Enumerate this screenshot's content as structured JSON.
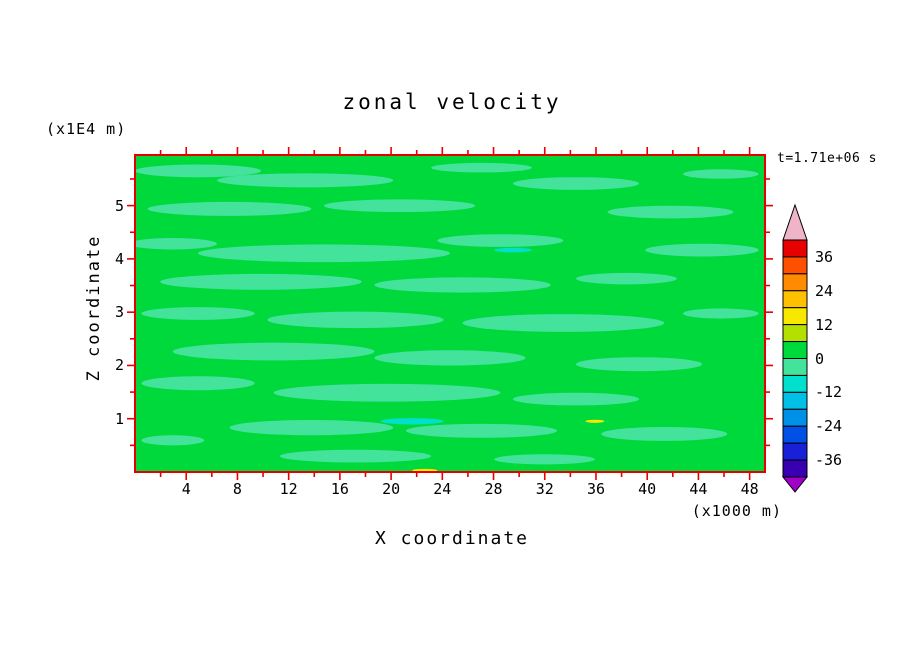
{
  "title": "zonal velocity",
  "annotations": {
    "y_axis_unit": "(x1E4 m)",
    "x_axis_unit": "(x1000 m)",
    "timestamp": "t=1.71e+06 s"
  },
  "x_axis": {
    "label": "X coordinate",
    "tick_labels": [
      "4",
      "8",
      "12",
      "16",
      "20",
      "24",
      "28",
      "32",
      "36",
      "40",
      "44",
      "48"
    ]
  },
  "y_axis": {
    "label": "Z coordinate",
    "tick_labels": [
      "1",
      "2",
      "3",
      "4",
      "5"
    ]
  },
  "colorbar": {
    "labels": [
      "36",
      "24",
      "12",
      "0",
      "-12",
      "-24",
      "-36"
    ]
  },
  "chart_data": {
    "type": "heatmap",
    "title": "zonal velocity",
    "xlabel": "X coordinate",
    "ylabel": "Z coordinate",
    "x_units": "(x1000 m)",
    "y_units": "(x1E4 m)",
    "time_annotation": "t=1.71e+06 s",
    "xlim": [
      0,
      49.2
    ],
    "ylim": [
      0,
      5.95
    ],
    "x_major_ticks": [
      4,
      8,
      12,
      16,
      20,
      24,
      28,
      32,
      36,
      40,
      44,
      48
    ],
    "x_minor_step": 2,
    "y_major_ticks": [
      1,
      2,
      3,
      4,
      5
    ],
    "y_minor_step": 0.5,
    "frame_color": "#e60000",
    "contour_interval": 6,
    "levels_range": [
      -42,
      42
    ],
    "colorbar_labels": [
      36,
      24,
      12,
      0,
      -12,
      -24,
      -36
    ],
    "colorbar_colors_top_to_bottom": [
      "#e60000",
      "#ff5000",
      "#ff8c00",
      "#ffc000",
      "#f8e800",
      "#b4e000",
      "#00d93c",
      "#43e39c",
      "#00e0cc",
      "#00c0e8",
      "#0090e8",
      "#0050e8",
      "#1820d8",
      "#3800b0"
    ],
    "colorbar_over_color": "#f0b4c8",
    "colorbar_under_color": "#a000c8",
    "field_base_band": "0 to 6",
    "field_base_color": "#00d93c",
    "field_summary": "zonal velocity is near zero over the whole section: dominated by the 0..6 band (green) with elongated horizontal streaks of the -6..0 band (light sea green), a few small -12..-6 (aqua) spots near x=20-22 z=0.9 and x=30 z=4, and tiny 6..18 (yellow) specks near x=36 z=0.9 and x=23 z=0",
    "patch_palette": {
      "neg1": "#43e39c",
      "neg2": "#00e0cc",
      "pos2": "#f8e800"
    },
    "patches": [
      {
        "x": 0.1,
        "y": 0.05,
        "rx": 0.1,
        "ry": 0.02,
        "band": "neg1"
      },
      {
        "x": 0.27,
        "y": 0.08,
        "rx": 0.14,
        "ry": 0.022,
        "band": "neg1"
      },
      {
        "x": 0.55,
        "y": 0.04,
        "rx": 0.08,
        "ry": 0.015,
        "band": "neg1"
      },
      {
        "x": 0.7,
        "y": 0.09,
        "rx": 0.1,
        "ry": 0.02,
        "band": "neg1"
      },
      {
        "x": 0.93,
        "y": 0.06,
        "rx": 0.06,
        "ry": 0.015,
        "band": "neg1"
      },
      {
        "x": 0.15,
        "y": 0.17,
        "rx": 0.13,
        "ry": 0.022,
        "band": "neg1"
      },
      {
        "x": 0.42,
        "y": 0.16,
        "rx": 0.12,
        "ry": 0.02,
        "band": "neg1"
      },
      {
        "x": 0.85,
        "y": 0.18,
        "rx": 0.1,
        "ry": 0.02,
        "band": "neg1"
      },
      {
        "x": 0.06,
        "y": 0.28,
        "rx": 0.07,
        "ry": 0.018,
        "band": "neg1"
      },
      {
        "x": 0.3,
        "y": 0.31,
        "rx": 0.2,
        "ry": 0.028,
        "band": "neg1"
      },
      {
        "x": 0.58,
        "y": 0.27,
        "rx": 0.1,
        "ry": 0.02,
        "band": "neg1"
      },
      {
        "x": 0.9,
        "y": 0.3,
        "rx": 0.09,
        "ry": 0.02,
        "band": "neg1"
      },
      {
        "x": 0.2,
        "y": 0.4,
        "rx": 0.16,
        "ry": 0.025,
        "band": "neg1"
      },
      {
        "x": 0.52,
        "y": 0.41,
        "rx": 0.14,
        "ry": 0.024,
        "band": "neg1"
      },
      {
        "x": 0.78,
        "y": 0.39,
        "rx": 0.08,
        "ry": 0.018,
        "band": "neg1"
      },
      {
        "x": 0.1,
        "y": 0.5,
        "rx": 0.09,
        "ry": 0.02,
        "band": "neg1"
      },
      {
        "x": 0.35,
        "y": 0.52,
        "rx": 0.14,
        "ry": 0.026,
        "band": "neg1"
      },
      {
        "x": 0.68,
        "y": 0.53,
        "rx": 0.16,
        "ry": 0.028,
        "band": "neg1"
      },
      {
        "x": 0.93,
        "y": 0.5,
        "rx": 0.06,
        "ry": 0.016,
        "band": "neg1"
      },
      {
        "x": 0.22,
        "y": 0.62,
        "rx": 0.16,
        "ry": 0.028,
        "band": "neg1"
      },
      {
        "x": 0.5,
        "y": 0.64,
        "rx": 0.12,
        "ry": 0.024,
        "band": "neg1"
      },
      {
        "x": 0.8,
        "y": 0.66,
        "rx": 0.1,
        "ry": 0.022,
        "band": "neg1"
      },
      {
        "x": 0.1,
        "y": 0.72,
        "rx": 0.09,
        "ry": 0.022,
        "band": "neg1"
      },
      {
        "x": 0.4,
        "y": 0.75,
        "rx": 0.18,
        "ry": 0.028,
        "band": "neg1"
      },
      {
        "x": 0.7,
        "y": 0.77,
        "rx": 0.1,
        "ry": 0.02,
        "band": "neg1"
      },
      {
        "x": 0.28,
        "y": 0.86,
        "rx": 0.13,
        "ry": 0.024,
        "band": "neg1"
      },
      {
        "x": 0.55,
        "y": 0.87,
        "rx": 0.12,
        "ry": 0.022,
        "band": "neg1"
      },
      {
        "x": 0.84,
        "y": 0.88,
        "rx": 0.1,
        "ry": 0.022,
        "band": "neg1"
      },
      {
        "x": 0.06,
        "y": 0.9,
        "rx": 0.05,
        "ry": 0.016,
        "band": "neg1"
      },
      {
        "x": 0.35,
        "y": 0.95,
        "rx": 0.12,
        "ry": 0.02,
        "band": "neg1"
      },
      {
        "x": 0.65,
        "y": 0.96,
        "rx": 0.08,
        "ry": 0.016,
        "band": "neg1"
      },
      {
        "x": 0.44,
        "y": 0.84,
        "rx": 0.05,
        "ry": 0.01,
        "band": "neg2"
      },
      {
        "x": 0.6,
        "y": 0.3,
        "rx": 0.03,
        "ry": 0.007,
        "band": "neg2"
      },
      {
        "x": 0.73,
        "y": 0.84,
        "rx": 0.015,
        "ry": 0.005,
        "band": "pos2"
      },
      {
        "x": 0.46,
        "y": 0.995,
        "rx": 0.02,
        "ry": 0.005,
        "band": "pos2"
      }
    ]
  }
}
